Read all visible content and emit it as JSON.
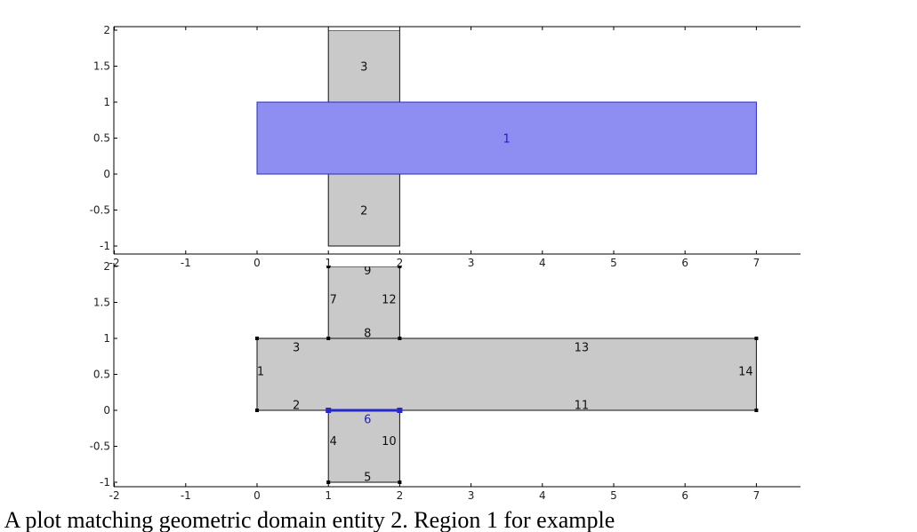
{
  "colors": {
    "background": "#ffffff",
    "gray_fill": "#c9c9c9",
    "highlight_fill": "#8e8ef2",
    "highlight_stroke": "#2828c8",
    "highlight_text": "#2020d0",
    "edge_stroke": "#111111"
  },
  "caption": "2. A plot matching geometric domain entity 2. Region 1 for example",
  "top_plot": {
    "x_ticks": [
      "-2",
      "-1",
      "0",
      "1",
      "2",
      "3",
      "4",
      "5",
      "6",
      "7"
    ],
    "y_ticks": [
      "2",
      "1.5",
      "1",
      "0.5",
      "0",
      "-0.5",
      "-1"
    ],
    "domains": [
      {
        "label": "1",
        "x": [
          0,
          7
        ],
        "y": [
          0,
          1
        ],
        "highlight": true
      },
      {
        "label": "2",
        "x": [
          1,
          2
        ],
        "y": [
          -1,
          0
        ],
        "highlight": false
      },
      {
        "label": "3",
        "x": [
          1,
          2
        ],
        "y": [
          1,
          2
        ],
        "highlight": false
      }
    ]
  },
  "bottom_plot": {
    "x_ticks": [
      "-2",
      "-1",
      "0",
      "1",
      "2",
      "3",
      "4",
      "5",
      "6",
      "7"
    ],
    "y_ticks": [
      "2",
      "1.5",
      "1",
      "0.5",
      "0",
      "-0.5",
      "-1"
    ],
    "edges": [
      {
        "label": "1",
        "from": [
          0,
          0
        ],
        "to": [
          0,
          1
        ],
        "label_at": [
          0.05,
          0.55
        ],
        "highlight": false
      },
      {
        "label": "2",
        "from": [
          0,
          0
        ],
        "to": [
          1,
          0
        ],
        "label_at": [
          0.55,
          0.08
        ],
        "highlight": false
      },
      {
        "label": "3",
        "from": [
          0,
          1
        ],
        "to": [
          1,
          1
        ],
        "label_at": [
          0.55,
          0.88
        ],
        "highlight": false
      },
      {
        "label": "4",
        "from": [
          1,
          -1
        ],
        "to": [
          1,
          0
        ],
        "label_at": [
          1.07,
          -0.42
        ],
        "highlight": false
      },
      {
        "label": "5",
        "from": [
          1,
          -1
        ],
        "to": [
          2,
          -1
        ],
        "label_at": [
          1.55,
          -0.92
        ],
        "highlight": false
      },
      {
        "label": "6",
        "from": [
          1,
          0
        ],
        "to": [
          2,
          0
        ],
        "label_at": [
          1.55,
          -0.12
        ],
        "highlight": true
      },
      {
        "label": "7",
        "from": [
          1,
          1
        ],
        "to": [
          1,
          2
        ],
        "label_at": [
          1.07,
          1.55
        ],
        "highlight": false
      },
      {
        "label": "8",
        "from": [
          1,
          1
        ],
        "to": [
          2,
          1
        ],
        "label_at": [
          1.55,
          1.08
        ],
        "highlight": false
      },
      {
        "label": "9",
        "from": [
          1,
          2
        ],
        "to": [
          2,
          2
        ],
        "label_at": [
          1.55,
          1.95
        ],
        "highlight": false
      },
      {
        "label": "10",
        "from": [
          2,
          -1
        ],
        "to": [
          2,
          0
        ],
        "label_at": [
          1.85,
          -0.42
        ],
        "highlight": false
      },
      {
        "label": "11",
        "from": [
          2,
          0
        ],
        "to": [
          7,
          0
        ],
        "label_at": [
          4.55,
          0.08
        ],
        "highlight": false
      },
      {
        "label": "12",
        "from": [
          2,
          1
        ],
        "to": [
          2,
          2
        ],
        "label_at": [
          1.85,
          1.55
        ],
        "highlight": false
      },
      {
        "label": "13",
        "from": [
          2,
          1
        ],
        "to": [
          7,
          1
        ],
        "label_at": [
          4.55,
          0.88
        ],
        "highlight": false
      },
      {
        "label": "14",
        "from": [
          7,
          0
        ],
        "to": [
          7,
          1
        ],
        "label_at": [
          6.85,
          0.55
        ],
        "highlight": false
      }
    ],
    "gray_regions": [
      {
        "x": [
          0,
          7
        ],
        "y": [
          0,
          1
        ]
      },
      {
        "x": [
          1,
          2
        ],
        "y": [
          -1,
          0
        ]
      },
      {
        "x": [
          1,
          2
        ],
        "y": [
          1,
          2
        ]
      }
    ]
  }
}
